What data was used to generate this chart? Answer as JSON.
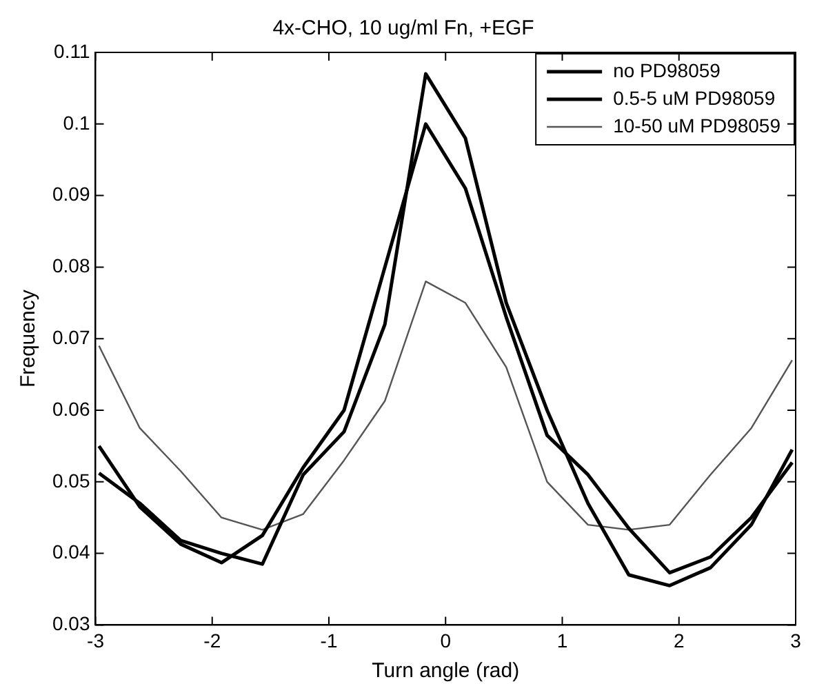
{
  "chart_data": {
    "type": "line",
    "title": "4x-CHO, 10 ug/ml Fn, +EGF",
    "xlabel": "Turn angle (rad)",
    "ylabel": "Frequency",
    "x": [
      -2.97,
      -2.62,
      -2.27,
      -1.92,
      -1.57,
      -1.22,
      -0.87,
      -0.52,
      -0.17,
      0.17,
      0.52,
      0.87,
      1.22,
      1.57,
      1.92,
      2.27,
      2.62,
      2.97
    ],
    "series": [
      {
        "name": "no PD98059",
        "color": "#000000",
        "values": [
          0.0512,
          0.047,
          0.0418,
          0.04,
          0.0385,
          0.051,
          0.057,
          0.072,
          0.107,
          0.098,
          0.075,
          0.06,
          0.047,
          0.037,
          0.0355,
          0.038,
          0.044,
          0.0545
        ]
      },
      {
        "name": "0.5-5 uM PD98059",
        "color": "#000000",
        "values": [
          0.055,
          0.0465,
          0.0413,
          0.0387,
          0.0425,
          0.052,
          0.06,
          0.08,
          0.1,
          0.091,
          0.073,
          0.0565,
          0.051,
          0.0435,
          0.0373,
          0.0395,
          0.045,
          0.0527
        ]
      },
      {
        "name": "10-50 uM PD98059",
        "color": "#555555",
        "values": [
          0.069,
          0.0575,
          0.0515,
          0.045,
          0.0433,
          0.0455,
          0.053,
          0.0613,
          0.078,
          0.075,
          0.066,
          0.05,
          0.044,
          0.0433,
          0.044,
          0.051,
          0.0575,
          0.067
        ]
      }
    ],
    "xlim": [
      -3,
      3
    ],
    "xticks": [
      -3,
      -2,
      -1,
      0,
      1,
      2,
      3
    ],
    "ylim": [
      0.03,
      0.11
    ],
    "yticks": [
      0.03,
      0.04,
      0.05,
      0.06,
      0.07,
      0.08,
      0.09,
      0.1,
      0.11
    ],
    "grid": false,
    "legend": "top right",
    "marker": "none",
    "line_style": "solid"
  }
}
